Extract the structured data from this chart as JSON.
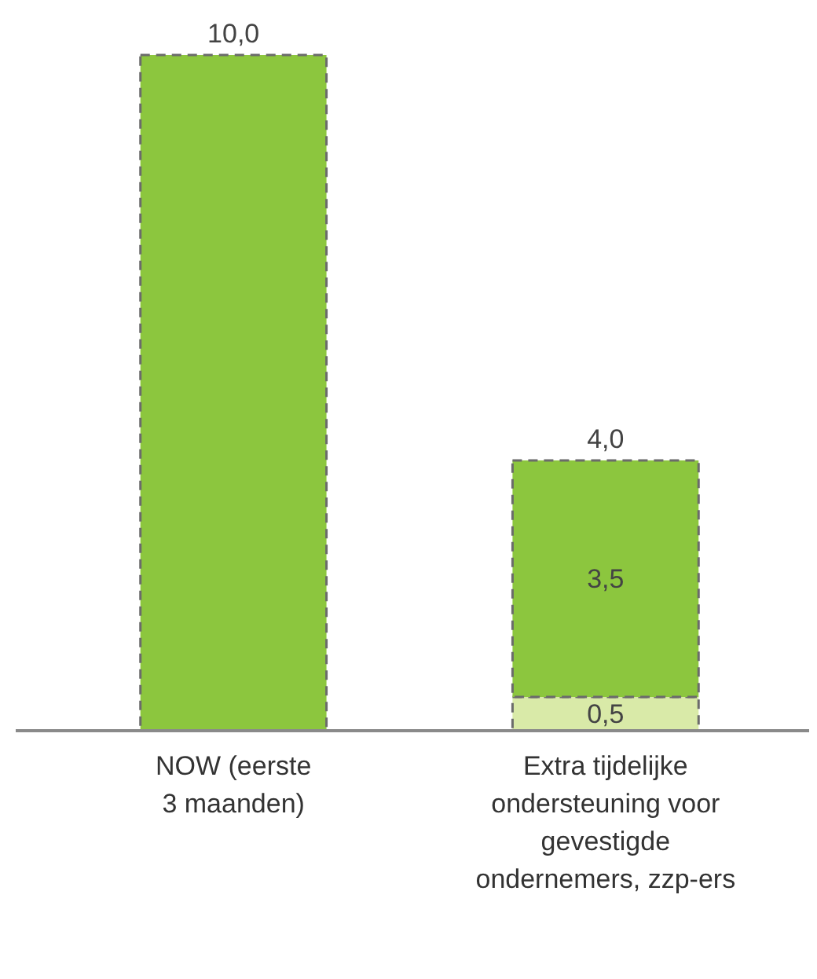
{
  "chart_data": {
    "type": "bar",
    "stacked": true,
    "categories": [
      "NOW (eerste\n3 maanden)",
      "Extra tijdelijke\nondersteuning voor\ngevestigde\nondernemers, zzp-ers"
    ],
    "series": [
      {
        "color": "#d9eaa8",
        "values": [
          null,
          0.5
        ],
        "value_labels": [
          null,
          "0,5"
        ]
      },
      {
        "color": "#8cc63e",
        "values": [
          10.0,
          3.5
        ],
        "value_labels": [
          null,
          "3,5"
        ]
      }
    ],
    "totals": [
      "10,0",
      "4,0"
    ]
  }
}
